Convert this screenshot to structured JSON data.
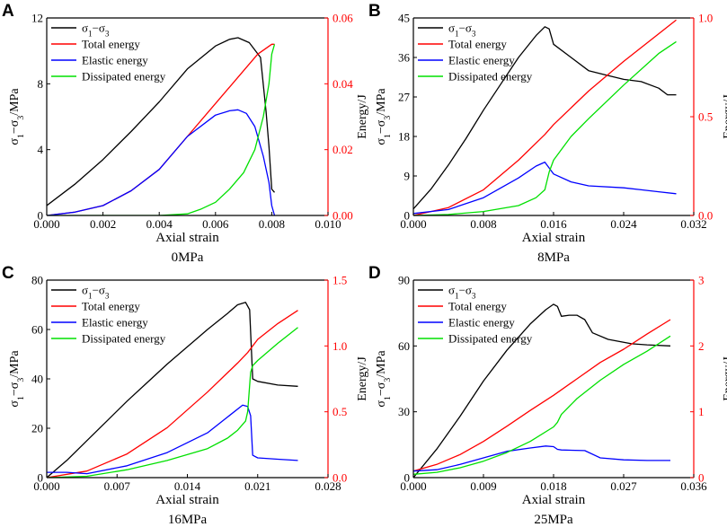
{
  "figure": {
    "colors": {
      "stress": "#000000",
      "total": "#ff0000",
      "elastic": "#0000ff",
      "dissipated": "#00e000",
      "right_axis": "#ff0000"
    }
  },
  "chart_data": [
    {
      "type": "line",
      "panel_label": "A",
      "subtitle": "0MPa",
      "xlabel": "Axial strain",
      "ylabel_left": "σ1−σ3/MPa",
      "ylabel_right": "Energy/J",
      "xlim": [
        0,
        0.01
      ],
      "ylim_left": [
        0,
        12
      ],
      "ylim_right": [
        0,
        0.06
      ],
      "x_ticks": [
        "0.000",
        "0.002",
        "0.004",
        "0.006",
        "0.008",
        "0.010"
      ],
      "y_left_ticks": [
        "0",
        "4",
        "8",
        "12"
      ],
      "y_right_ticks": [
        "0.00",
        "0.02",
        "0.04",
        "0.06"
      ],
      "legend": [
        "σ1−σ3",
        "Total energy",
        "Elastic energy",
        "Dissipated energy"
      ],
      "legend_position": "top-left",
      "series": [
        {
          "name": "σ1−σ3",
          "axis": "left",
          "color": "#000000",
          "x": [
            0,
            0.001,
            0.002,
            0.003,
            0.004,
            0.005,
            0.006,
            0.0065,
            0.0068,
            0.0072,
            0.0076,
            0.0078,
            0.0079,
            0.008,
            0.0081
          ],
          "y": [
            0.6,
            1.9,
            3.4,
            5.1,
            6.9,
            8.9,
            10.3,
            10.7,
            10.8,
            10.5,
            9.6,
            6.3,
            4.2,
            1.6,
            1.4
          ]
        },
        {
          "name": "Total energy",
          "axis": "right",
          "color": "#ff0000",
          "x": [
            0,
            0.001,
            0.002,
            0.003,
            0.004,
            0.005,
            0.006,
            0.007,
            0.0075,
            0.008,
            0.0081
          ],
          "y": [
            0,
            0.001,
            0.003,
            0.0075,
            0.014,
            0.024,
            0.034,
            0.044,
            0.049,
            0.052,
            0.052
          ]
        },
        {
          "name": "Elastic energy",
          "axis": "right",
          "color": "#0000ff",
          "x": [
            0,
            0.001,
            0.002,
            0.003,
            0.004,
            0.005,
            0.006,
            0.0065,
            0.0068,
            0.0071,
            0.0074,
            0.0077,
            0.0079,
            0.008,
            0.0081
          ],
          "y": [
            0,
            0.001,
            0.003,
            0.0075,
            0.014,
            0.024,
            0.0305,
            0.0318,
            0.0321,
            0.031,
            0.027,
            0.018,
            0.01,
            0.003,
            0
          ]
        },
        {
          "name": "Dissipated energy",
          "axis": "right",
          "color": "#00e000",
          "x": [
            0,
            0.002,
            0.004,
            0.005,
            0.0055,
            0.006,
            0.0065,
            0.007,
            0.0074,
            0.0077,
            0.0079,
            0.008,
            0.0081
          ],
          "y": [
            0,
            0,
            0,
            0.0005,
            0.002,
            0.004,
            0.008,
            0.013,
            0.02,
            0.03,
            0.04,
            0.049,
            0.052
          ]
        }
      ]
    },
    {
      "type": "line",
      "panel_label": "B",
      "subtitle": "8MPa",
      "xlabel": "Axial strain",
      "ylabel_left": "σ1−σ3/MPa",
      "ylabel_right": "Energy/J",
      "xlim": [
        0,
        0.032
      ],
      "ylim_left": [
        0,
        45
      ],
      "ylim_right": [
        0,
        1
      ],
      "x_ticks": [
        "0.000",
        "0.008",
        "0.016",
        "0.024",
        "0.032"
      ],
      "y_left_ticks": [
        "0",
        "9",
        "18",
        "27",
        "36",
        "45"
      ],
      "y_right_ticks": [
        "0.0",
        "0.5",
        "1.0"
      ],
      "legend": [
        "σ1−σ3",
        "Total energy",
        "Elastic energy",
        "Dissipated energy"
      ],
      "legend_position": "top-left",
      "series": [
        {
          "name": "σ1−σ3",
          "axis": "left",
          "color": "#000000",
          "x": [
            0,
            0.002,
            0.004,
            0.006,
            0.008,
            0.01,
            0.012,
            0.014,
            0.015,
            0.0155,
            0.016,
            0.018,
            0.02,
            0.022,
            0.024,
            0.026,
            0.028,
            0.029,
            0.03
          ],
          "y": [
            1.5,
            6,
            11.5,
            17.5,
            24,
            30,
            36,
            41,
            43,
            42.5,
            39,
            36,
            33,
            32,
            31,
            30.5,
            29,
            27.5,
            27.5
          ]
        },
        {
          "name": "Total energy",
          "axis": "right",
          "color": "#ff0000",
          "x": [
            0,
            0.004,
            0.008,
            0.012,
            0.015,
            0.016,
            0.02,
            0.024,
            0.028,
            0.03
          ],
          "y": [
            0,
            0.04,
            0.13,
            0.28,
            0.41,
            0.46,
            0.63,
            0.78,
            0.92,
            0.99
          ]
        },
        {
          "name": "Elastic energy",
          "axis": "right",
          "color": "#0000ff",
          "x": [
            0,
            0.004,
            0.008,
            0.012,
            0.014,
            0.015,
            0.016,
            0.018,
            0.02,
            0.024,
            0.026,
            0.028,
            0.03
          ],
          "y": [
            0.01,
            0.03,
            0.09,
            0.19,
            0.25,
            0.27,
            0.21,
            0.17,
            0.15,
            0.14,
            0.13,
            0.12,
            0.11
          ]
        },
        {
          "name": "Dissipated energy",
          "axis": "right",
          "color": "#00e000",
          "x": [
            0,
            0.004,
            0.008,
            0.012,
            0.014,
            0.015,
            0.0155,
            0.016,
            0.018,
            0.02,
            0.024,
            0.028,
            0.03
          ],
          "y": [
            0,
            0.005,
            0.02,
            0.05,
            0.09,
            0.13,
            0.22,
            0.28,
            0.4,
            0.49,
            0.66,
            0.82,
            0.88
          ]
        }
      ]
    },
    {
      "type": "line",
      "panel_label": "C",
      "subtitle": "16MPa",
      "xlabel": "Axial strain",
      "ylabel_left": "σ1−σ3/MPa",
      "ylabel_right": "Energy/J",
      "xlim": [
        0,
        0.028
      ],
      "ylim_left": [
        0,
        80
      ],
      "ylim_right": [
        0,
        1.5
      ],
      "x_ticks": [
        "0.000",
        "0.007",
        "0.014",
        "0.021",
        "0.028"
      ],
      "y_left_ticks": [
        "0",
        "20",
        "40",
        "60",
        "80"
      ],
      "y_right_ticks": [
        "0.0",
        "0.5",
        "1.0",
        "1.5"
      ],
      "legend": [
        "σ1−σ3",
        "Total energy",
        "Elastic energy",
        "Dissipated energy"
      ],
      "legend_position": "top-left",
      "series": [
        {
          "name": "σ1−σ3",
          "axis": "left",
          "color": "#000000",
          "x": [
            0,
            0.002,
            0.004,
            0.006,
            0.008,
            0.01,
            0.012,
            0.014,
            0.016,
            0.018,
            0.019,
            0.0198,
            0.0202,
            0.0205,
            0.021,
            0.023,
            0.025
          ],
          "y": [
            0,
            7,
            15,
            23,
            31,
            38.5,
            46,
            53,
            60,
            66.5,
            70,
            71,
            68,
            40,
            39,
            37.5,
            37
          ]
        },
        {
          "name": "Total energy",
          "axis": "right",
          "color": "#ff0000",
          "x": [
            0,
            0.004,
            0.008,
            0.012,
            0.016,
            0.019,
            0.02,
            0.021,
            0.023,
            0.025
          ],
          "y": [
            0,
            0.05,
            0.18,
            0.38,
            0.65,
            0.87,
            0.95,
            1.05,
            1.17,
            1.27
          ]
        },
        {
          "name": "Elastic energy",
          "axis": "right",
          "color": "#0000ff",
          "x": [
            0,
            0.002,
            0.004,
            0.008,
            0.012,
            0.016,
            0.018,
            0.0195,
            0.02,
            0.0203,
            0.0205,
            0.021,
            0.023,
            0.025
          ],
          "y": [
            0.04,
            0.04,
            0.03,
            0.09,
            0.19,
            0.34,
            0.46,
            0.55,
            0.54,
            0.47,
            0.17,
            0.15,
            0.14,
            0.13
          ]
        },
        {
          "name": "Dissipated energy",
          "axis": "right",
          "color": "#00e000",
          "x": [
            0,
            0.004,
            0.008,
            0.012,
            0.016,
            0.018,
            0.019,
            0.0198,
            0.02,
            0.0203,
            0.0205,
            0.021,
            0.023,
            0.025
          ],
          "y": [
            0,
            0.01,
            0.06,
            0.13,
            0.22,
            0.3,
            0.36,
            0.43,
            0.5,
            0.8,
            0.85,
            0.89,
            1.02,
            1.14
          ]
        }
      ]
    },
    {
      "type": "line",
      "panel_label": "D",
      "subtitle": "25MPa",
      "xlabel": "Axial strain",
      "ylabel_left": "σ1−σ3/MPa",
      "ylabel_right": "Energy/J",
      "xlim": [
        0,
        0.036
      ],
      "ylim_left": [
        0,
        90
      ],
      "ylim_right": [
        0,
        3
      ],
      "x_ticks": [
        "0.000",
        "0.009",
        "0.018",
        "0.027",
        "0.036"
      ],
      "y_left_ticks": [
        "0",
        "30",
        "60",
        "90"
      ],
      "y_right_ticks": [
        "0",
        "1",
        "2",
        "3"
      ],
      "legend": [
        "σ1−σ3",
        "Total energy",
        "Elastic energy",
        "Dissipated energy"
      ],
      "legend_position": "top-left",
      "series": [
        {
          "name": "σ1−σ3",
          "axis": "left",
          "color": "#000000",
          "x": [
            0,
            0.003,
            0.006,
            0.009,
            0.012,
            0.015,
            0.017,
            0.018,
            0.0185,
            0.019,
            0.02,
            0.021,
            0.022,
            0.023,
            0.025,
            0.028,
            0.03,
            0.033
          ],
          "y": [
            0,
            13,
            28,
            44,
            58,
            70,
            76.5,
            79,
            78,
            73.5,
            74,
            74,
            72,
            66,
            63,
            61,
            60.5,
            60
          ]
        },
        {
          "name": "Total energy",
          "axis": "right",
          "color": "#ff0000",
          "x": [
            0,
            0.003,
            0.006,
            0.009,
            0.012,
            0.015,
            0.018,
            0.021,
            0.024,
            0.027,
            0.03,
            0.033
          ],
          "y": [
            0.1,
            0.2,
            0.35,
            0.55,
            0.78,
            1.02,
            1.25,
            1.5,
            1.75,
            1.95,
            2.18,
            2.4
          ]
        },
        {
          "name": "Elastic energy",
          "axis": "right",
          "color": "#0000ff",
          "x": [
            0,
            0.003,
            0.006,
            0.009,
            0.012,
            0.015,
            0.017,
            0.018,
            0.0185,
            0.019,
            0.022,
            0.024,
            0.027,
            0.03,
            0.033
          ],
          "y": [
            0.1,
            0.12,
            0.2,
            0.3,
            0.4,
            0.45,
            0.48,
            0.47,
            0.43,
            0.42,
            0.41,
            0.3,
            0.27,
            0.26,
            0.26
          ]
        },
        {
          "name": "Dissipated energy",
          "axis": "right",
          "color": "#00e000",
          "x": [
            0,
            0.003,
            0.006,
            0.009,
            0.012,
            0.015,
            0.018,
            0.0185,
            0.019,
            0.021,
            0.024,
            0.027,
            0.03,
            0.033
          ],
          "y": [
            0.05,
            0.08,
            0.15,
            0.25,
            0.38,
            0.55,
            0.77,
            0.84,
            0.96,
            1.2,
            1.48,
            1.72,
            1.92,
            2.15
          ]
        }
      ]
    }
  ]
}
